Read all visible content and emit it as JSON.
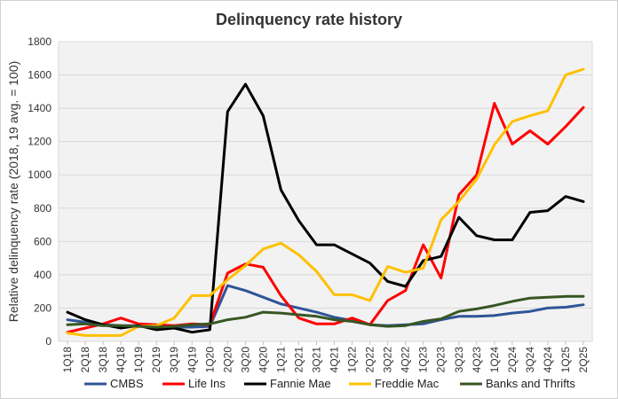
{
  "chart_data": {
    "type": "line",
    "title": "Delinquency rate history",
    "xlabel": "",
    "ylabel": "Relative delinquency rate  (2018, 19 avg. = 100)",
    "ylim": [
      0,
      1800
    ],
    "yticks": [
      0,
      200,
      400,
      600,
      800,
      1000,
      1200,
      1400,
      1600,
      1800
    ],
    "grid": true,
    "legend_position": "bottom",
    "categories": [
      "1Q18",
      "2Q18",
      "3Q18",
      "4Q18",
      "1Q19",
      "2Q19",
      "3Q19",
      "4Q19",
      "1Q20",
      "2Q20",
      "3Q20",
      "4Q20",
      "1Q21",
      "2Q21",
      "3Q21",
      "4Q21",
      "1Q22",
      "2Q22",
      "3Q22",
      "4Q22",
      "1Q23",
      "2Q23",
      "3Q23",
      "4Q23",
      "1Q24",
      "2Q24",
      "3Q24",
      "4Q24",
      "1Q25",
      "2Q25"
    ],
    "series": [
      {
        "name": "CMBS",
        "color": "#2f5597",
        "values": [
          130,
          115,
          100,
          95,
          95,
          90,
          85,
          85,
          90,
          335,
          305,
          265,
          225,
          200,
          175,
          145,
          125,
          100,
          95,
          100,
          105,
          130,
          150,
          150,
          155,
          170,
          180,
          200,
          205,
          220
        ]
      },
      {
        "name": "Life Ins",
        "color": "#ff0000",
        "values": [
          55,
          80,
          105,
          140,
          105,
          100,
          95,
          105,
          100,
          410,
          465,
          445,
          275,
          140,
          105,
          105,
          140,
          100,
          245,
          305,
          580,
          380,
          880,
          1000,
          1430,
          1185,
          1265,
          1185,
          1290,
          1405
        ]
      },
      {
        "name": "Fannie Mae",
        "color": "#000000",
        "values": [
          175,
          130,
          100,
          80,
          95,
          70,
          80,
          55,
          70,
          1380,
          1545,
          1355,
          910,
          725,
          580,
          580,
          525,
          470,
          360,
          330,
          485,
          510,
          745,
          635,
          610,
          610,
          775,
          785,
          870,
          840
        ]
      },
      {
        "name": "Freddie Mac",
        "color": "#ffc000",
        "values": [
          50,
          35,
          35,
          35,
          90,
          95,
          140,
          275,
          275,
          370,
          455,
          555,
          590,
          520,
          420,
          280,
          280,
          245,
          450,
          415,
          440,
          730,
          840,
          975,
          1180,
          1320,
          1355,
          1385,
          1600,
          1635
        ]
      },
      {
        "name": "Banks and Thrifts",
        "color": "#375623",
        "values": [
          100,
          105,
          95,
          95,
          90,
          85,
          90,
          100,
          105,
          130,
          145,
          175,
          170,
          160,
          150,
          130,
          120,
          100,
          90,
          95,
          120,
          135,
          180,
          195,
          215,
          240,
          260,
          265,
          270,
          270
        ]
      }
    ]
  }
}
